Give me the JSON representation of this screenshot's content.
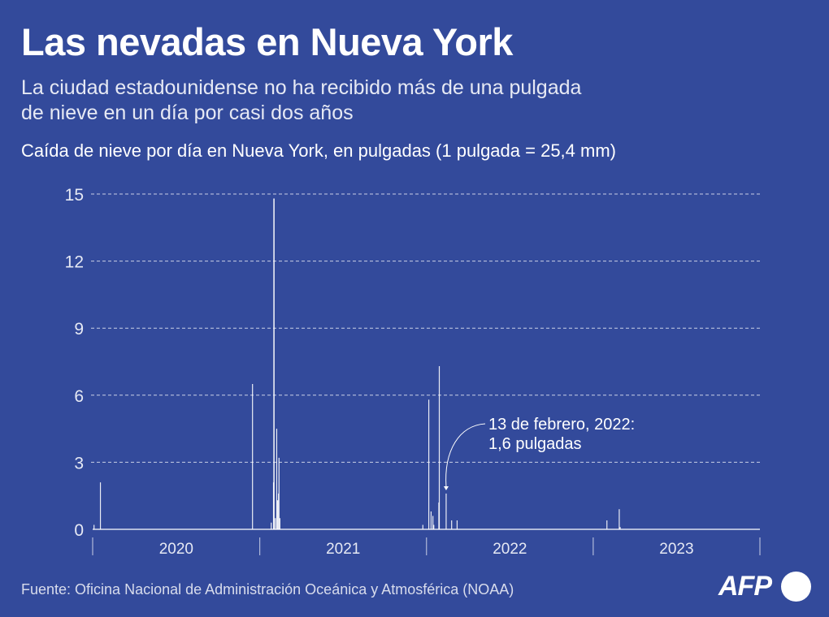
{
  "header": {
    "title": "Las nevadas en Nueva York",
    "subtitle": "La ciudad estadounidense no ha recibido más de una pulgada de nieve en un día por casi dos años",
    "chart_label": "Caída de nieve por día en Nueva York, en pulgadas (1 pulgada = 25,4 mm)"
  },
  "footer": {
    "source": "Fuente: Oficina Nacional de Administración Oceánica y Atmosférica (NOAA)",
    "logo_text": "AFP"
  },
  "colors": {
    "background": "#334a9b",
    "bars": "#ffffff",
    "grid": "#c9cfe6"
  },
  "chart_data": {
    "type": "bar",
    "title": "Caída de nieve por día en Nueva York, en pulgadas (1 pulgada = 25,4 mm)",
    "xlabel": "",
    "ylabel": "",
    "ylim": [
      0,
      15
    ],
    "xlim": [
      "2020-01-01",
      "2024-01-01"
    ],
    "grid": true,
    "y_ticks": [
      "0",
      "3",
      "6",
      "9",
      "12",
      "15"
    ],
    "x_tick_labels": [
      "2020",
      "2021",
      "2022",
      "2023"
    ],
    "points": [
      {
        "date": "2020-01-04",
        "value": 0.2
      },
      {
        "date": "2020-01-18",
        "value": 2.1
      },
      {
        "date": "2020-12-16",
        "value": 6.5
      },
      {
        "date": "2021-01-26",
        "value": 0.3
      },
      {
        "date": "2021-01-31",
        "value": 2.1
      },
      {
        "date": "2021-02-01",
        "value": 14.8
      },
      {
        "date": "2021-02-04",
        "value": 0.5
      },
      {
        "date": "2021-02-07",
        "value": 4.5
      },
      {
        "date": "2021-02-09",
        "value": 1.3
      },
      {
        "date": "2021-02-11",
        "value": 1.6
      },
      {
        "date": "2021-02-12",
        "value": 3.2
      },
      {
        "date": "2021-02-14",
        "value": 0.5
      },
      {
        "date": "2021-12-24",
        "value": 0.2
      },
      {
        "date": "2022-01-06",
        "value": 5.8
      },
      {
        "date": "2022-01-11",
        "value": 0.8
      },
      {
        "date": "2022-01-15",
        "value": 0.6
      },
      {
        "date": "2022-01-17",
        "value": 0.2
      },
      {
        "date": "2022-01-28",
        "value": 1.2
      },
      {
        "date": "2022-01-29",
        "value": 7.3
      },
      {
        "date": "2022-02-13",
        "value": 1.6
      },
      {
        "date": "2022-02-25",
        "value": 0.4
      },
      {
        "date": "2022-03-09",
        "value": 0.4
      },
      {
        "date": "2023-01-31",
        "value": 0.4
      },
      {
        "date": "2023-02-27",
        "value": 0.9
      },
      {
        "date": "2023-03-01",
        "value": 0.1
      }
    ],
    "annotation": {
      "date": "2022-02-13",
      "value": 1.6,
      "line1": "13 de febrero, 2022:",
      "line2": "1,6 pulgadas"
    }
  }
}
